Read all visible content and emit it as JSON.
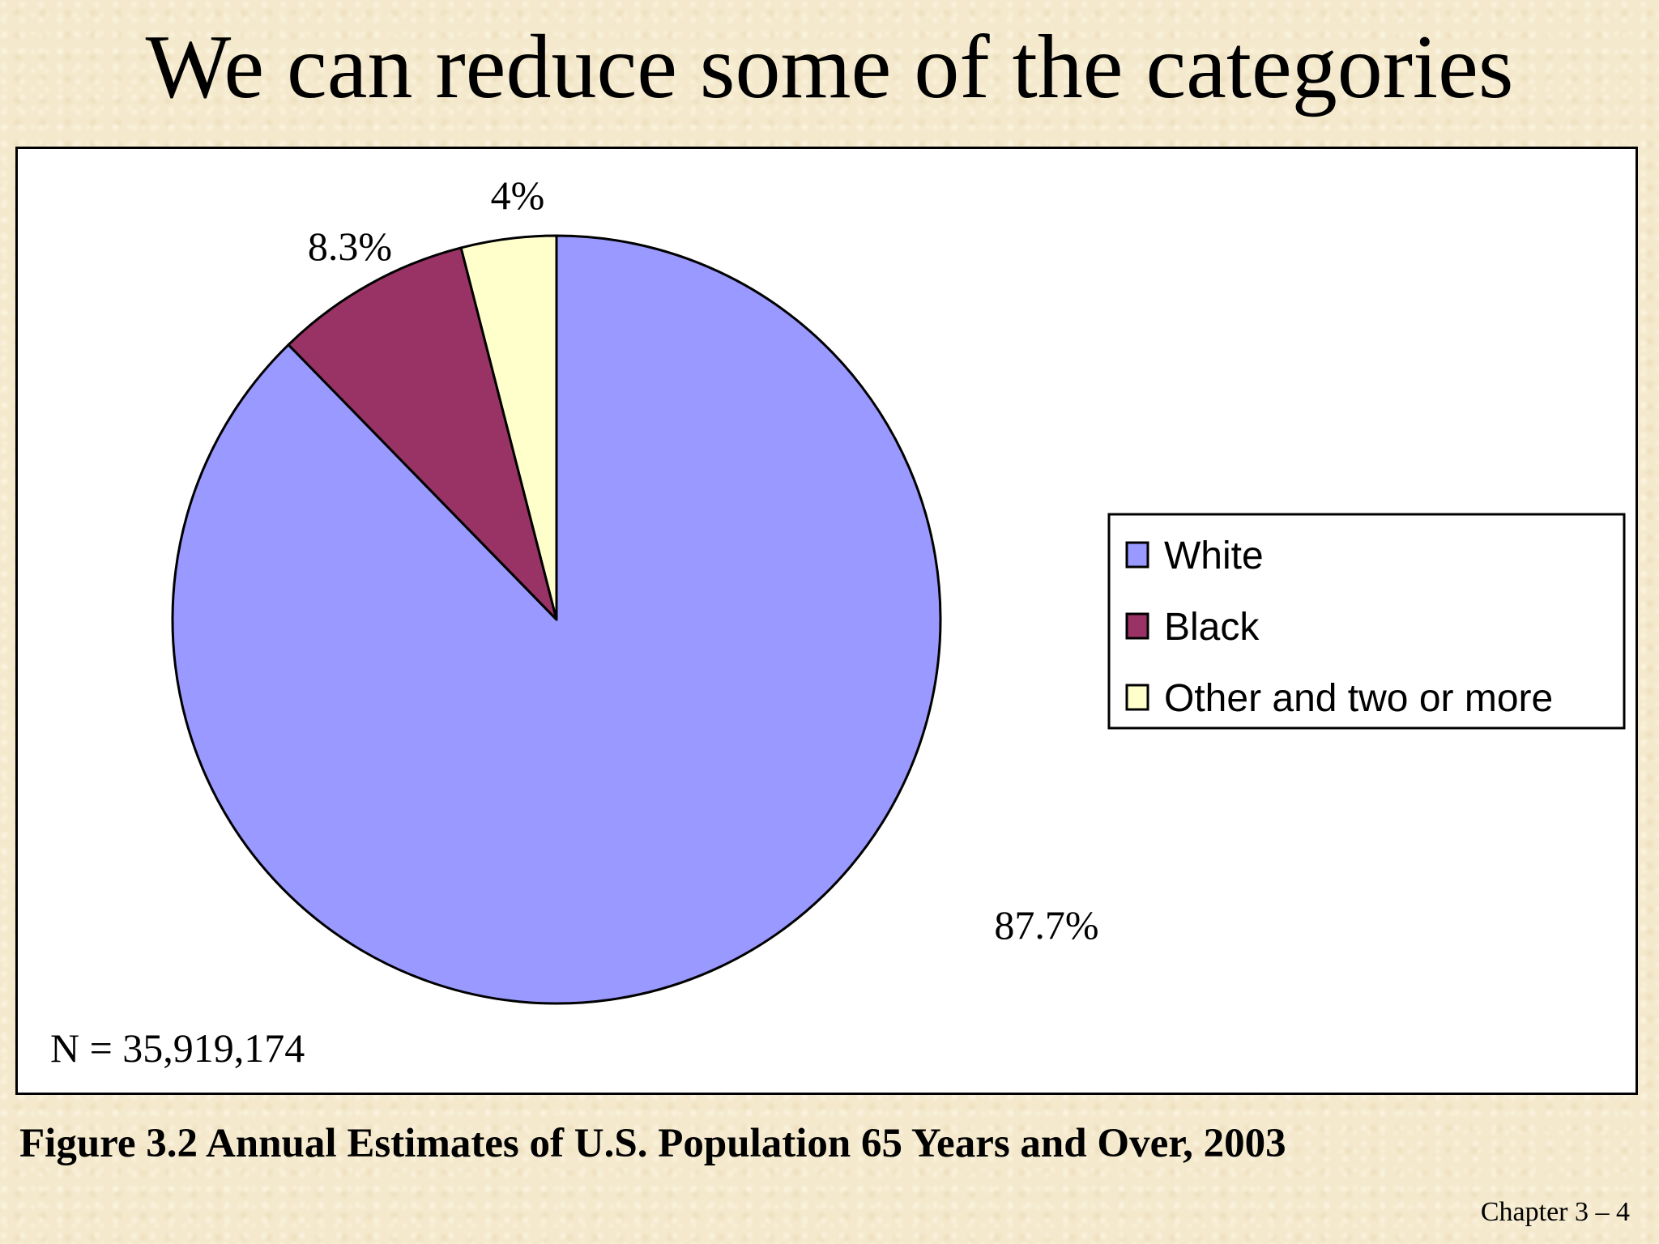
{
  "slide": {
    "title": "We can reduce some of the categories",
    "caption": "Figure 3.2 Annual Estimates of U.S. Population 65 Years and Over, 2003",
    "footer": "Chapter 3 – 4"
  },
  "chart_data": {
    "type": "pie",
    "categories": [
      "White",
      "Black",
      "Other and two or more"
    ],
    "values": [
      87.7,
      8.3,
      4
    ],
    "data_labels": [
      "87.7%",
      "8.3%",
      "4%"
    ],
    "colors": [
      "#9999ff",
      "#993366",
      "#ffffcc"
    ],
    "start": "12 o'clock, clockwise",
    "legend_position": "right",
    "annotation": "N = 35,919,174",
    "title": "",
    "xlabel": "",
    "ylabel": ""
  }
}
